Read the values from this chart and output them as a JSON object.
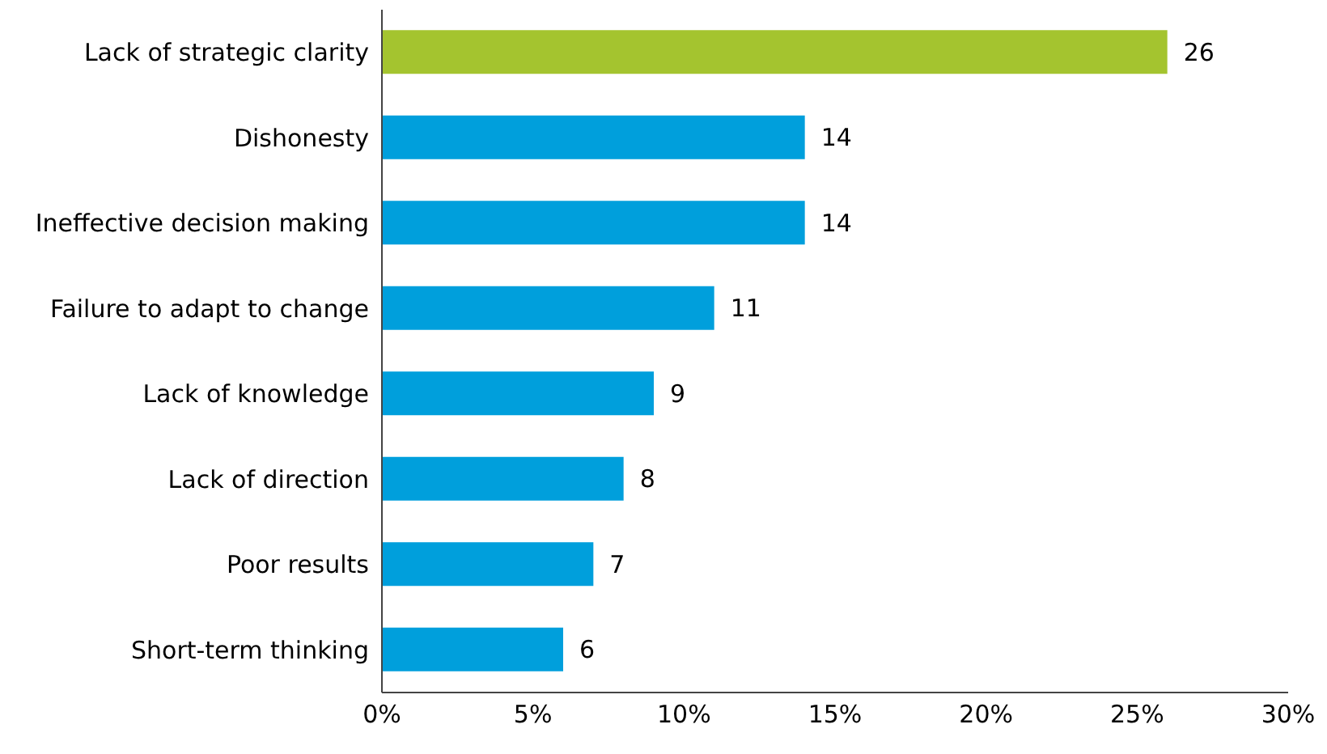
{
  "chart_data": {
    "type": "bar",
    "orientation": "horizontal",
    "categories": [
      "Lack of strategic clarity",
      "Dishonesty",
      "Ineffective decision making",
      "Failure to adapt to change",
      "Lack of knowledge",
      "Lack of direction",
      "Poor results",
      "Short-term thinking"
    ],
    "values": [
      26,
      14,
      14,
      11,
      9,
      8,
      7,
      6
    ],
    "colors": [
      "#a4c42f",
      "#009fdc",
      "#009fdc",
      "#009fdc",
      "#009fdc",
      "#009fdc",
      "#009fdc",
      "#009fdc"
    ],
    "xlim": [
      0,
      30
    ],
    "xticks": [
      {
        "value": 0,
        "label": "0%"
      },
      {
        "value": 5,
        "label": "5%"
      },
      {
        "value": 10,
        "label": "10%"
      },
      {
        "value": 15,
        "label": "15%"
      },
      {
        "value": 20,
        "label": "20%"
      },
      {
        "value": 25,
        "label": "25%"
      },
      {
        "value": 30,
        "label": "30%"
      }
    ],
    "data_labels": true,
    "grid": false,
    "legend": false
  }
}
